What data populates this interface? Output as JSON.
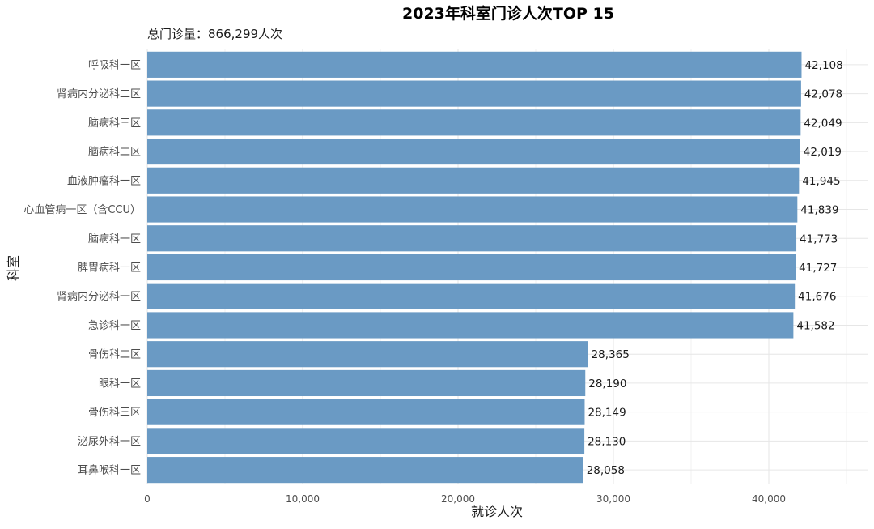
{
  "chart_data": {
    "type": "bar",
    "orientation": "horizontal",
    "title": "2023年科室门诊人次TOP 15",
    "subtitle": "总门诊量：866,299人次",
    "xlabel": "就诊人次",
    "ylabel": "科室",
    "xlim": [
      0,
      45000
    ],
    "xticks": [
      0,
      10000,
      20000,
      30000,
      40000
    ],
    "xtick_labels": [
      "0",
      "10,000",
      "20,000",
      "30,000",
      "40,000"
    ],
    "grid": true,
    "bar_color": "#6A9AC4",
    "categories": [
      "呼吸科一区",
      "肾病内分泌科二区",
      "脑病科三区",
      "脑病科二区",
      "血液肿瘤科一区",
      "心血管病一区（含CCU）",
      "脑病科一区",
      "脾胃病科一区",
      "肾病内分泌科一区",
      "急诊科一区",
      "骨伤科二区",
      "眼科一区",
      "骨伤科三区",
      "泌尿外科一区",
      "耳鼻喉科一区"
    ],
    "values": [
      42108,
      42078,
      42049,
      42019,
      41945,
      41839,
      41773,
      41727,
      41676,
      41582,
      28365,
      28190,
      28149,
      28130,
      28058
    ],
    "value_labels": [
      "42,108",
      "42,078",
      "42,049",
      "42,019",
      "41,945",
      "41,839",
      "41,773",
      "41,727",
      "41,676",
      "41,582",
      "28,365",
      "28,190",
      "28,149",
      "28,130",
      "28,058"
    ]
  }
}
